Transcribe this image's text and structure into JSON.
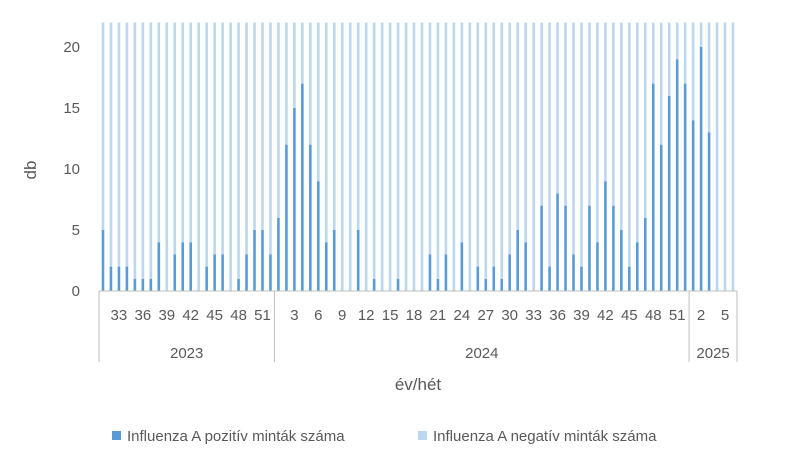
{
  "chart_data": {
    "type": "bar",
    "stacked": true,
    "xlabel": "év/hét",
    "ylabel": "db",
    "ylim": [
      0,
      20
    ],
    "yticks": [
      0,
      5,
      10,
      15,
      20
    ],
    "grid": false,
    "legend_position": "bottom",
    "x_weeks": [
      31,
      32,
      33,
      34,
      35,
      36,
      37,
      38,
      39,
      40,
      41,
      42,
      43,
      44,
      45,
      46,
      47,
      48,
      49,
      50,
      51,
      52,
      1,
      2,
      3,
      4,
      5,
      6,
      7,
      8,
      9,
      10,
      11,
      12,
      13,
      14,
      15,
      16,
      17,
      18,
      19,
      20,
      21,
      22,
      23,
      24,
      25,
      26,
      27,
      28,
      29,
      30,
      31,
      32,
      33,
      34,
      35,
      36,
      37,
      38,
      39,
      40,
      41,
      42,
      43,
      44,
      45,
      46,
      47,
      48,
      49,
      50,
      51,
      52,
      1,
      2,
      3,
      4,
      5,
      6
    ],
    "x_years": [
      {
        "label": "2023",
        "count": 22
      },
      {
        "label": "2024",
        "count": 52
      },
      {
        "label": "2025",
        "count": 6
      }
    ],
    "x_tick_labels": [
      {
        "index": 2,
        "label": "33"
      },
      {
        "index": 5,
        "label": "36"
      },
      {
        "index": 8,
        "label": "39"
      },
      {
        "index": 11,
        "label": "42"
      },
      {
        "index": 14,
        "label": "45"
      },
      {
        "index": 17,
        "label": "48"
      },
      {
        "index": 20,
        "label": "51"
      },
      {
        "index": 24,
        "label": "3"
      },
      {
        "index": 27,
        "label": "6"
      },
      {
        "index": 30,
        "label": "9"
      },
      {
        "index": 33,
        "label": "12"
      },
      {
        "index": 36,
        "label": "15"
      },
      {
        "index": 39,
        "label": "18"
      },
      {
        "index": 42,
        "label": "21"
      },
      {
        "index": 45,
        "label": "24"
      },
      {
        "index": 48,
        "label": "27"
      },
      {
        "index": 51,
        "label": "30"
      },
      {
        "index": 54,
        "label": "33"
      },
      {
        "index": 57,
        "label": "36"
      },
      {
        "index": 60,
        "label": "39"
      },
      {
        "index": 63,
        "label": "42"
      },
      {
        "index": 66,
        "label": "45"
      },
      {
        "index": 69,
        "label": "48"
      },
      {
        "index": 72,
        "label": "51"
      },
      {
        "index": 75,
        "label": "2"
      },
      {
        "index": 78,
        "label": "5"
      }
    ],
    "series": [
      {
        "name": "Influenza A pozitív minták száma",
        "color": "#5b9bd5",
        "values": [
          5,
          2,
          2,
          2,
          1,
          1,
          1,
          4,
          0,
          3,
          4,
          4,
          0,
          2,
          3,
          3,
          0,
          1,
          3,
          5,
          5,
          3,
          6,
          12,
          15,
          17,
          12,
          9,
          4,
          5,
          0,
          0,
          5,
          0,
          1,
          0,
          0,
          1,
          0,
          0,
          0,
          3,
          1,
          3,
          0,
          4,
          0,
          2,
          1,
          2,
          1,
          3,
          5,
          4,
          0,
          7,
          2,
          8,
          7,
          3,
          2,
          7,
          4,
          9,
          7,
          5,
          2,
          4,
          6,
          17,
          12,
          16,
          19,
          17,
          14,
          20,
          13,
          0,
          0,
          0
        ]
      },
      {
        "name": "Influenza A negatív minták száma",
        "color": "#bdd7ee",
        "values": [
          17,
          20,
          20,
          20,
          21,
          21,
          21,
          18,
          22,
          19,
          18,
          18,
          22,
          20,
          19,
          19,
          22,
          21,
          19,
          17,
          17,
          19,
          16,
          10,
          7,
          5,
          10,
          13,
          18,
          17,
          22,
          22,
          17,
          22,
          21,
          22,
          22,
          21,
          22,
          22,
          22,
          19,
          21,
          19,
          22,
          18,
          22,
          20,
          21,
          20,
          21,
          19,
          17,
          18,
          22,
          15,
          20,
          14,
          15,
          19,
          20,
          15,
          18,
          13,
          15,
          17,
          20,
          18,
          16,
          5,
          10,
          6,
          3,
          5,
          8,
          2,
          9,
          22,
          22,
          22
        ]
      }
    ]
  }
}
